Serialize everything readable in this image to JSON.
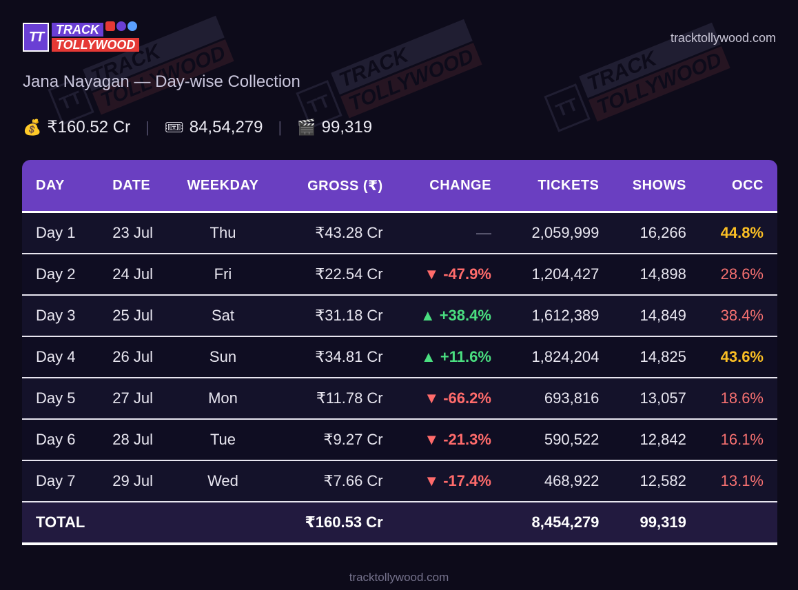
{
  "brand": {
    "logo_mark": "TT",
    "logo_line1": "TRACK",
    "logo_line2": "TOLLYWOOD",
    "site": "tracktollywood.com",
    "colors": {
      "background": "#0d0b1a",
      "header": "#6a3fc1",
      "logo_purple": "#6a3fd4",
      "logo_red": "#e53935",
      "up": "#4ade80",
      "down": "#ff6b6b",
      "occ_high": "#fbbf24",
      "occ_low": "#f87171"
    }
  },
  "title": "Jana Nayagan — Day-wise Collection",
  "summary": {
    "gross": {
      "icon": "money-bag-icon",
      "glyph": "💰",
      "value": "₹160.52 Cr"
    },
    "tickets": {
      "icon": "ticket-icon",
      "glyph": "🎟",
      "value": "84,54,279"
    },
    "shows": {
      "icon": "clapperboard-icon",
      "glyph": "🎬",
      "value": "99,319"
    }
  },
  "columns": [
    "DAY",
    "DATE",
    "WEEKDAY",
    "GROSS (₹)",
    "CHANGE",
    "TICKETS",
    "SHOWS",
    "OCC"
  ],
  "rows": [
    {
      "day": "Day 1",
      "date": "23 Jul",
      "weekday": "Thu",
      "gross": "₹43.28 Cr",
      "change": "—",
      "change_dir": "none",
      "tickets": "2,059,999",
      "shows": "16,266",
      "occ": "44.8%",
      "occ_level": "high"
    },
    {
      "day": "Day 2",
      "date": "24 Jul",
      "weekday": "Fri",
      "gross": "₹22.54 Cr",
      "change": "▼ -47.9%",
      "change_dir": "down",
      "tickets": "1,204,427",
      "shows": "14,898",
      "occ": "28.6%",
      "occ_level": "low"
    },
    {
      "day": "Day 3",
      "date": "25 Jul",
      "weekday": "Sat",
      "gross": "₹31.18 Cr",
      "change": "▲ +38.4%",
      "change_dir": "up",
      "tickets": "1,612,389",
      "shows": "14,849",
      "occ": "38.4%",
      "occ_level": "low"
    },
    {
      "day": "Day 4",
      "date": "26 Jul",
      "weekday": "Sun",
      "gross": "₹34.81 Cr",
      "change": "▲ +11.6%",
      "change_dir": "up",
      "tickets": "1,824,204",
      "shows": "14,825",
      "occ": "43.6%",
      "occ_level": "high"
    },
    {
      "day": "Day 5",
      "date": "27 Jul",
      "weekday": "Mon",
      "gross": "₹11.78 Cr",
      "change": "▼ -66.2%",
      "change_dir": "down",
      "tickets": "693,816",
      "shows": "13,057",
      "occ": "18.6%",
      "occ_level": "low"
    },
    {
      "day": "Day 6",
      "date": "28 Jul",
      "weekday": "Tue",
      "gross": "₹9.27 Cr",
      "change": "▼ -21.3%",
      "change_dir": "down",
      "tickets": "590,522",
      "shows": "12,842",
      "occ": "16.1%",
      "occ_level": "low"
    },
    {
      "day": "Day 7",
      "date": "29 Jul",
      "weekday": "Wed",
      "gross": "₹7.66 Cr",
      "change": "▼ -17.4%",
      "change_dir": "down",
      "tickets": "468,922",
      "shows": "12,582",
      "occ": "13.1%",
      "occ_level": "low"
    }
  ],
  "total": {
    "label": "TOTAL",
    "gross": "₹160.53 Cr",
    "tickets": "8,454,279",
    "shows": "99,319"
  }
}
